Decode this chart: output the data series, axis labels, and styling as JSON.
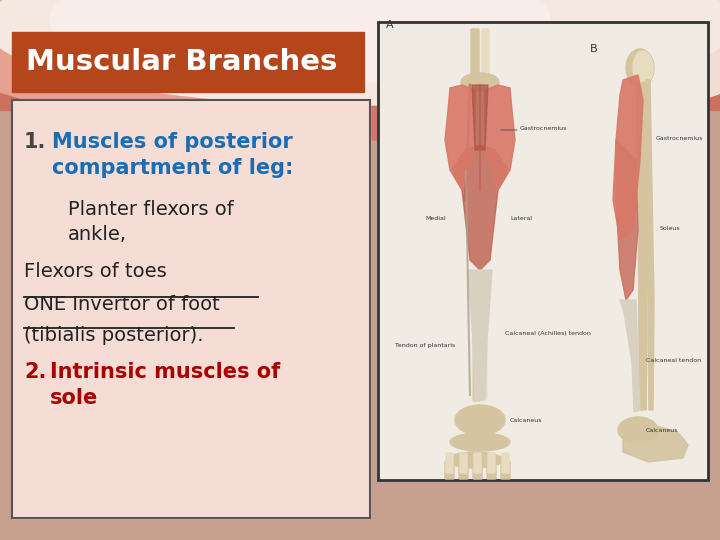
{
  "title": "Muscular Branches",
  "title_bg_color": "#b5451b",
  "title_text_color": "#ffffff",
  "slide_bg_top_color": "#d4756a",
  "slide_bg_bottom_color": "#c8a090",
  "text_box_bg_color": "#f5ddd5",
  "text_box_border_color": "#555555",
  "line1_number": "1.",
  "line1_number_color": "#555555",
  "line1_text": "Muscles of posterior\ncompartment of leg:",
  "line1_color": "#1a6db5",
  "line2_text": "Planter flexors of\nankle,",
  "line2_color": "#222222",
  "line3_text": "Flexors of toes",
  "line3_color": "#222222",
  "line4a_text": "ONE Invertor of foot",
  "line4b_text": "(tibialis posterior).",
  "line4_color": "#222222",
  "line5_number": "2.",
  "line5_number_color": "#aa0000",
  "line5_text": "Intrinsic muscles of\nsole",
  "line5_color": "#aa0000",
  "img_box_bg": "#f0ece4",
  "img_box_border": "#333333",
  "wave_color1": "#e8968a",
  "wave_color2": "#d47065",
  "wave_white": "#f5ede8"
}
